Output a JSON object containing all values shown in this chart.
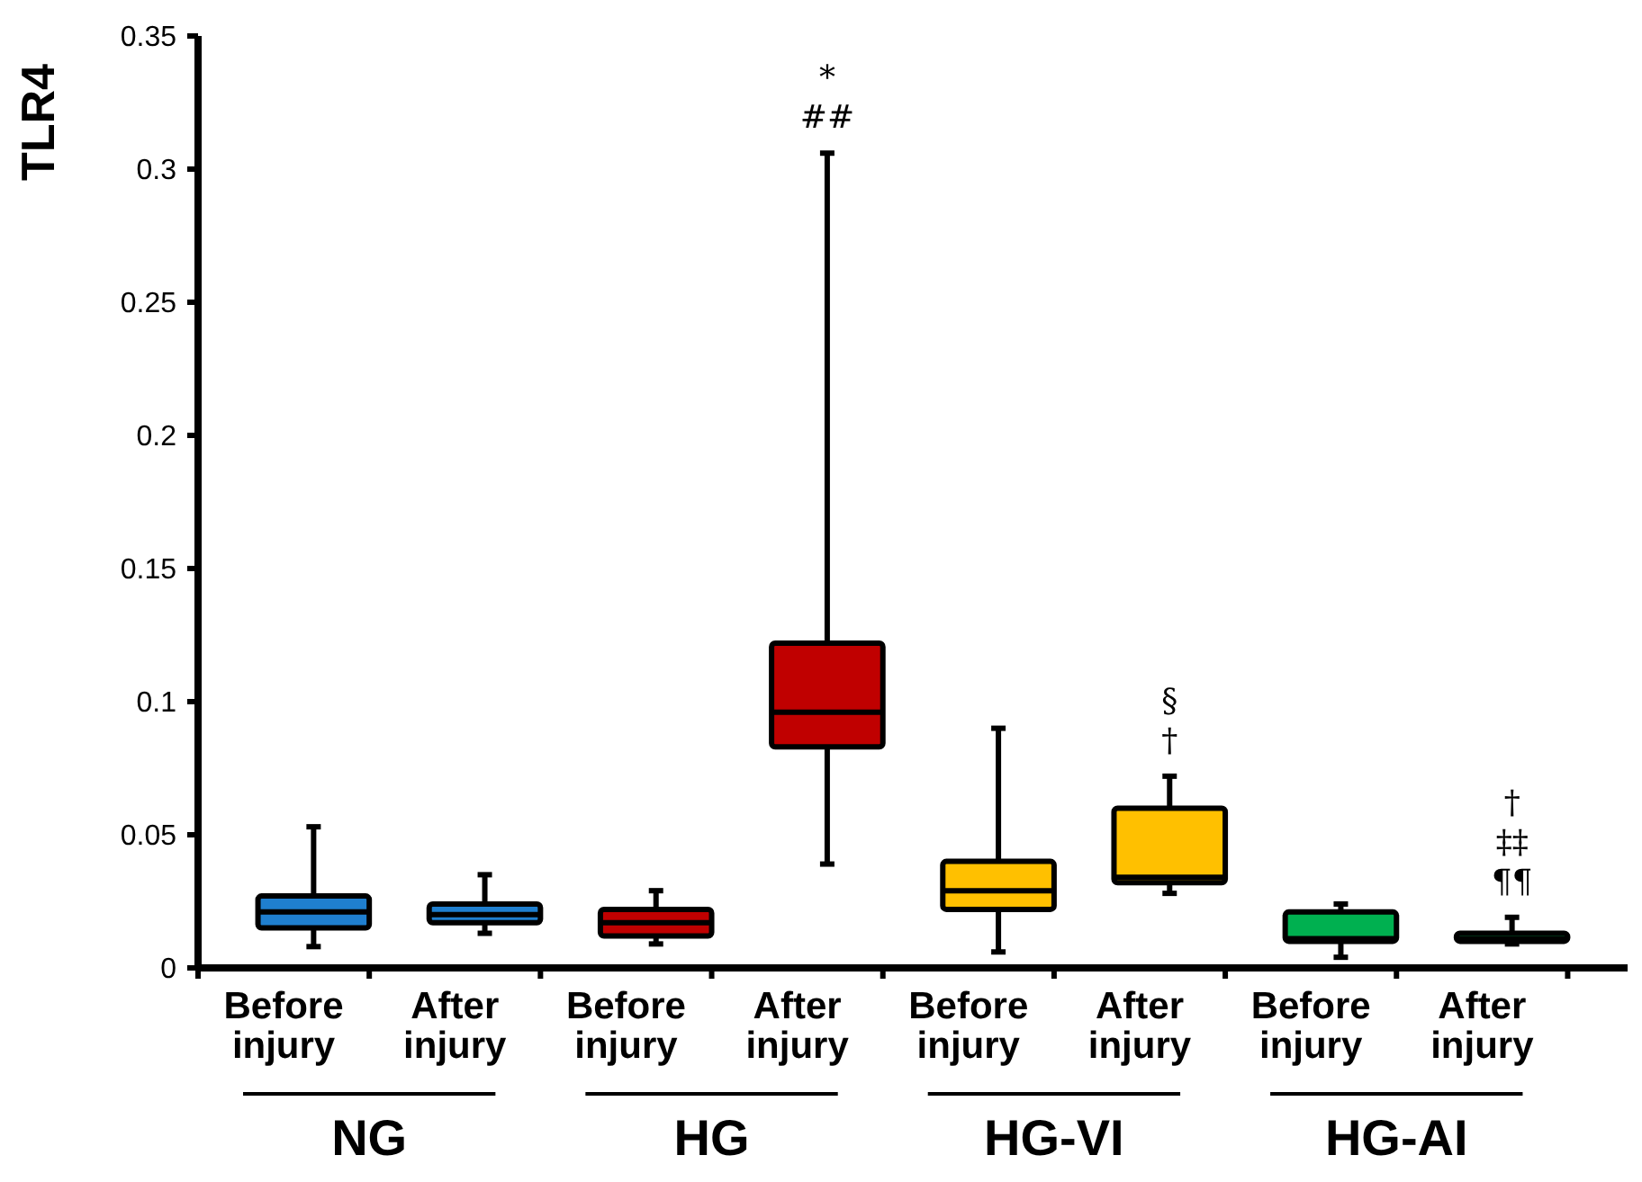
{
  "chart_data": {
    "type": "box",
    "ylabel": "TLR4",
    "categories": [
      "Before injury",
      "After injury",
      "Before injury",
      "After injury",
      "Before injury",
      "After injury",
      "Before injury",
      "After injury"
    ],
    "ylim": [
      0,
      0.35
    ],
    "yticks": [
      0,
      0.05,
      0.1,
      0.15,
      0.2,
      0.25,
      0.3,
      0.35
    ],
    "grid": false,
    "series": [
      {
        "colors": [
          "#1f7fcf",
          "#1f7fcf",
          "#c00000",
          "#c00000",
          "#ffc000",
          "#ffc000",
          "#00b050",
          "#00b050"
        ],
        "boxes": [
          {
            "low": 0.008,
            "q1": 0.015,
            "median": 0.021,
            "q3": 0.027,
            "high": 0.053
          },
          {
            "low": 0.013,
            "q1": 0.017,
            "median": 0.02,
            "q3": 0.024,
            "high": 0.035
          },
          {
            "low": 0.009,
            "q1": 0.012,
            "median": 0.017,
            "q3": 0.022,
            "high": 0.029
          },
          {
            "low": 0.039,
            "q1": 0.083,
            "median": 0.096,
            "q3": 0.122,
            "high": 0.306
          },
          {
            "low": 0.006,
            "q1": 0.022,
            "median": 0.029,
            "q3": 0.04,
            "high": 0.09
          },
          {
            "low": 0.028,
            "q1": 0.032,
            "median": 0.034,
            "q3": 0.06,
            "high": 0.072
          },
          {
            "low": 0.004,
            "q1": 0.01,
            "median": 0.011,
            "q3": 0.021,
            "high": 0.024
          },
          {
            "low": 0.009,
            "q1": 0.01,
            "median": 0.011,
            "q3": 0.013,
            "high": 0.019
          }
        ]
      }
    ],
    "annotations": [
      "NG",
      "HG",
      "HG-VI",
      "HG-AI",
      "*",
      "##",
      "§",
      "†",
      "†",
      "‡‡",
      "¶¶"
    ]
  }
}
